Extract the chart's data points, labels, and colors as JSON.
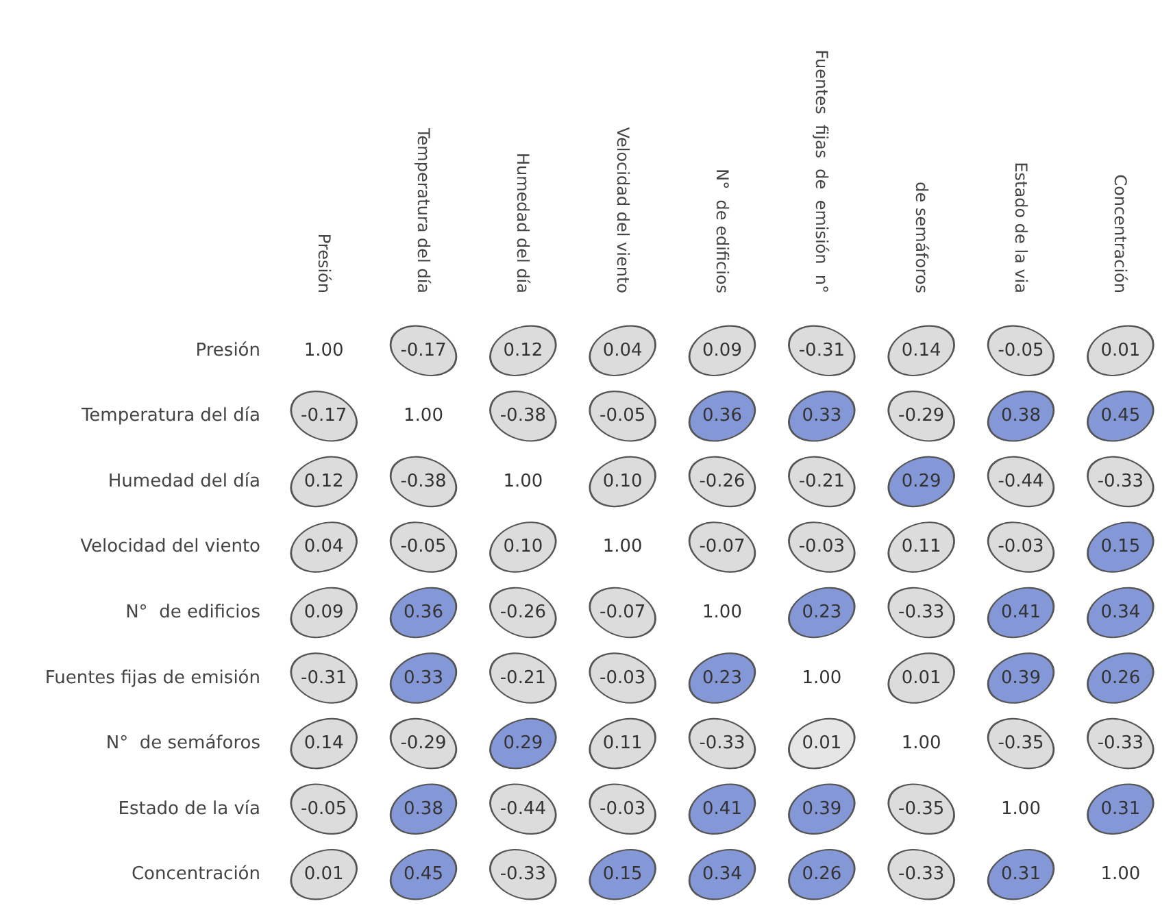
{
  "chart_data": {
    "type": "heatmap",
    "categories": [
      "Presión",
      "Temperatura del día",
      "Humedad del día",
      "Velocidad del viento",
      "N°  de edificios",
      "Fuentes  fijas  de  emisión  n°",
      "de semáforos",
      "Estado de la via",
      "Concentración"
    ],
    "y_categories": [
      "Presión",
      "Temperatura del día",
      "Humedad del día",
      "Velocidad del viento",
      "N°  de edificios",
      "Fuentes fijas de emisión",
      "N°  de semáforos",
      "Estado de la vía",
      "Concentración"
    ],
    "cells": [
      [
        1.0,
        -0.17,
        0.12,
        0.04,
        0.09,
        -0.31,
        0.14,
        -0.05,
        0.01
      ],
      [
        -0.17,
        1.0,
        -0.38,
        -0.05,
        0.36,
        0.33,
        -0.29,
        0.38,
        0.45
      ],
      [
        0.12,
        -0.38,
        1.0,
        0.1,
        -0.26,
        -0.21,
        0.29,
        -0.44,
        -0.33
      ],
      [
        0.04,
        -0.05,
        0.1,
        1.0,
        -0.07,
        -0.03,
        0.11,
        -0.03,
        0.15
      ],
      [
        0.09,
        0.36,
        -0.26,
        -0.07,
        1.0,
        0.23,
        -0.33,
        0.41,
        0.34
      ],
      [
        -0.31,
        0.33,
        -0.21,
        -0.03,
        0.23,
        1.0,
        0.01,
        0.39,
        0.26
      ],
      [
        0.14,
        -0.29,
        0.29,
        0.11,
        -0.33,
        0.01,
        1.0,
        -0.35,
        -0.33
      ],
      [
        -0.05,
        0.38,
        -0.44,
        -0.03,
        0.41,
        0.39,
        -0.35,
        1.0,
        0.31
      ],
      [
        0.01,
        0.45,
        -0.33,
        0.15,
        0.34,
        0.26,
        -0.33,
        0.31,
        1.0
      ]
    ],
    "cell_labels": [
      [
        "1.00",
        "-0.17",
        "0.12",
        "0.04",
        "0.09",
        "-0.31",
        "0.14",
        "-0.05",
        "0.01"
      ],
      [
        "-0.17",
        "1.00",
        "-0.38",
        "-0.05",
        "0.36",
        "0.33",
        "-0.29",
        "0.38",
        "0.45"
      ],
      [
        "0.12",
        "-0.38",
        "1.00",
        "0.10",
        "-0.26",
        "-0.21",
        "0.29",
        "-0.44",
        "-0.33"
      ],
      [
        "0.04",
        "-0.05",
        "0.10",
        "1.00",
        "-0.07",
        "-0.03",
        "0.11",
        "-0.03",
        "0.15"
      ],
      [
        "0.09",
        "0.36",
        "-0.26",
        "-0.07",
        "1.00",
        "0.23",
        "-0.33",
        "0.41",
        "0.34"
      ],
      [
        "-0.31",
        "0.33",
        "-0.21",
        "-0.03",
        "0.23",
        "1.00",
        "0.01",
        "0.39",
        "0.26"
      ],
      [
        "0.14",
        "-0.29",
        "0.29",
        "0.11",
        "-0.33",
        "0.01",
        "1.00",
        "-0.35",
        "-0.33"
      ],
      [
        "-0.05",
        "0.38",
        "-0.44",
        "-0.03",
        "0.41",
        "0.39",
        "-0.35",
        "1.00",
        "0.31"
      ],
      [
        "0.01",
        "0.45",
        "-0.33",
        "0.15",
        "0.34",
        "0.26",
        "-0.33",
        "0.31",
        "1.00"
      ]
    ],
    "colors": [
      [
        null,
        "#dcdcdc",
        "#dcdcdc",
        "#dcdcdc",
        "#dcdcdc",
        "#dcdcdc",
        "#dcdcdc",
        "#dcdcdc",
        "#dcdcdc"
      ],
      [
        "#dcdcdc",
        null,
        "#dcdcdc",
        "#dcdcdc",
        "#8497d6",
        "#8497d6",
        "#dcdcdc",
        "#8497d6",
        "#8497d6"
      ],
      [
        "#dcdcdc",
        "#dcdcdc",
        null,
        "#dcdcdc",
        "#dcdcdc",
        "#dcdcdc",
        "#8497d6",
        "#dcdcdc",
        "#dcdcdc"
      ],
      [
        "#dcdcdc",
        "#dcdcdc",
        "#dcdcdc",
        null,
        "#dcdcdc",
        "#dcdcdc",
        "#dcdcdc",
        "#dcdcdc",
        "#8497d6"
      ],
      [
        "#dcdcdc",
        "#8497d6",
        "#dcdcdc",
        "#dcdcdc",
        null,
        "#8497d6",
        "#dcdcdc",
        "#8497d6",
        "#8497d6"
      ],
      [
        "#dcdcdc",
        "#8497d6",
        "#dcdcdc",
        "#dcdcdc",
        "#8497d6",
        null,
        "#dcdcdc",
        "#8497d6",
        "#8497d6"
      ],
      [
        "#dcdcdc",
        "#dcdcdc",
        "#8497d6",
        "#dcdcdc",
        "#dcdcdc",
        "#e6e6e6",
        null,
        "#dcdcdc",
        "#dcdcdc"
      ],
      [
        "#dcdcdc",
        "#8497d6",
        "#dcdcdc",
        "#dcdcdc",
        "#8497d6",
        "#8497d6",
        "#dcdcdc",
        null,
        "#8497d6"
      ],
      [
        "#dcdcdc",
        "#8497d6",
        "#dcdcdc",
        "#8497d6",
        "#8497d6",
        "#8497d6",
        "#dcdcdc",
        "#8497d6",
        null
      ]
    ]
  }
}
